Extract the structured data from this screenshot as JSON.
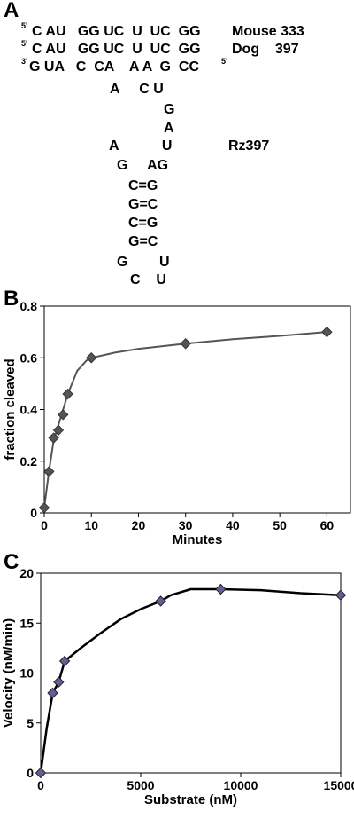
{
  "panels": {
    "a": "A",
    "b": "B",
    "c": "C"
  },
  "panel_a": {
    "five_prime": "5'",
    "three_prime": "3'",
    "rows": [
      {
        "seq": "C AU   GG UC  U  UC  GG",
        "label": "Mouse 333"
      },
      {
        "seq": "C AU   GG UC  U  UC  GG",
        "label": "Dog    397"
      },
      {
        "seq": "G UA   C  CA    A A  G  CC",
        "label": ""
      }
    ],
    "structure": [
      "A     C U",
      "G",
      "A",
      "A           U",
      "G     AG",
      "C=G",
      "G=C",
      "C=G",
      "G=C",
      "G        U",
      "C    U"
    ],
    "ribozyme_label": "Rz397"
  },
  "chart_data": [
    {
      "type": "line",
      "xlabel": "Minutes",
      "ylabel": "fraction cleaved",
      "xlim": [
        0,
        65
      ],
      "ylim": [
        0,
        0.8
      ],
      "x_ticks": [
        0,
        10,
        20,
        30,
        40,
        50,
        60
      ],
      "y_ticks": [
        0,
        0.2,
        0.4,
        0.6,
        0.8
      ],
      "y_tick_labels": [
        "0",
        "0.2",
        "0.4",
        "0.6",
        "0.8"
      ],
      "grid": false,
      "marker": "diamond",
      "color": "#555555",
      "series": [
        {
          "x": [
            0,
            1,
            2,
            3,
            4,
            5,
            10,
            30,
            60
          ],
          "y": [
            0.02,
            0.16,
            0.29,
            0.32,
            0.38,
            0.46,
            0.6,
            0.655,
            0.7
          ]
        }
      ],
      "curve": [
        [
          0,
          0.02
        ],
        [
          1,
          0.16
        ],
        [
          2,
          0.28
        ],
        [
          3,
          0.34
        ],
        [
          4,
          0.4
        ],
        [
          5,
          0.46
        ],
        [
          7,
          0.55
        ],
        [
          9,
          0.59
        ],
        [
          10,
          0.6
        ],
        [
          15,
          0.62
        ],
        [
          20,
          0.635
        ],
        [
          30,
          0.655
        ],
        [
          40,
          0.672
        ],
        [
          50,
          0.685
        ],
        [
          60,
          0.7
        ]
      ]
    },
    {
      "type": "line",
      "xlabel": "Substrate (nM)",
      "ylabel": "Velocity (nM/min)",
      "xlim": [
        0,
        15000
      ],
      "ylim": [
        0,
        20
      ],
      "x_ticks": [
        0,
        5000,
        10000,
        15000
      ],
      "y_ticks": [
        0,
        5,
        10,
        15,
        20
      ],
      "y_tick_labels": [
        "0",
        "5",
        "10",
        "15",
        "20"
      ],
      "grid": false,
      "marker": "diamond",
      "color": "#6b5b95",
      "series": [
        {
          "x": [
            0,
            600,
            900,
            1200,
            6000,
            9000,
            15000
          ],
          "y": [
            0,
            8.0,
            9.1,
            11.2,
            17.2,
            18.4,
            17.8
          ]
        }
      ],
      "curve": [
        [
          0,
          0
        ],
        [
          300,
          4.5
        ],
        [
          600,
          8.0
        ],
        [
          900,
          9.1
        ],
        [
          1200,
          11.2
        ],
        [
          2000,
          12.5
        ],
        [
          3000,
          14.0
        ],
        [
          4000,
          15.4
        ],
        [
          5000,
          16.4
        ],
        [
          6000,
          17.2
        ],
        [
          6500,
          17.8
        ],
        [
          7500,
          18.4
        ],
        [
          9000,
          18.4
        ],
        [
          11000,
          18.3
        ],
        [
          13000,
          18.0
        ],
        [
          15000,
          17.8
        ]
      ]
    }
  ]
}
